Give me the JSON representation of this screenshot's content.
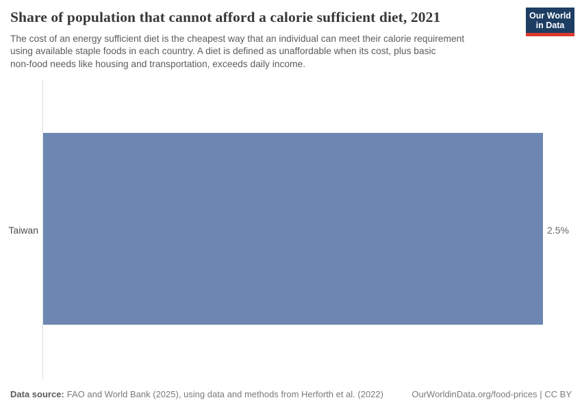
{
  "header": {
    "title": "Share of population that cannot afford a calorie sufficient diet, 2021",
    "subtitle_lines": [
      "The cost of an energy sufficient diet is the cheapest way that an individual can meet their calorie requirement",
      "using available staple foods in each country. A diet is defined as unaffordable when its cost, plus basic",
      "non-food needs like housing and transportation, exceeds daily income."
    ],
    "logo": {
      "line1": "Our World",
      "line2": "in Data"
    }
  },
  "chart_data": {
    "type": "bar",
    "orientation": "horizontal",
    "categories": [
      "Taiwan"
    ],
    "values": [
      2.5
    ],
    "value_labels": [
      "2.5%"
    ],
    "unit": "%",
    "title": "Share of population that cannot afford a calorie sufficient diet, 2021",
    "xlabel": "",
    "ylabel": "",
    "xlim": [
      0,
      2.5
    ],
    "grid": false,
    "legend": false,
    "bar_color": "#6e87b2"
  },
  "footer": {
    "source_label": "Data source:",
    "source_text": "FAO and World Bank (2025), using data and methods from Herforth et al. (2022)",
    "license_text": "OurWorldinData.org/food-prices | CC BY"
  },
  "colors": {
    "bar": "#6e87b2",
    "logo_background": "#1d3d63",
    "logo_accent": "#d93c31",
    "axis_line": "#dedede",
    "title_text": "#383838",
    "subtitle_text": "#5b5b5b",
    "footer_text": "#7a7a7a"
  }
}
